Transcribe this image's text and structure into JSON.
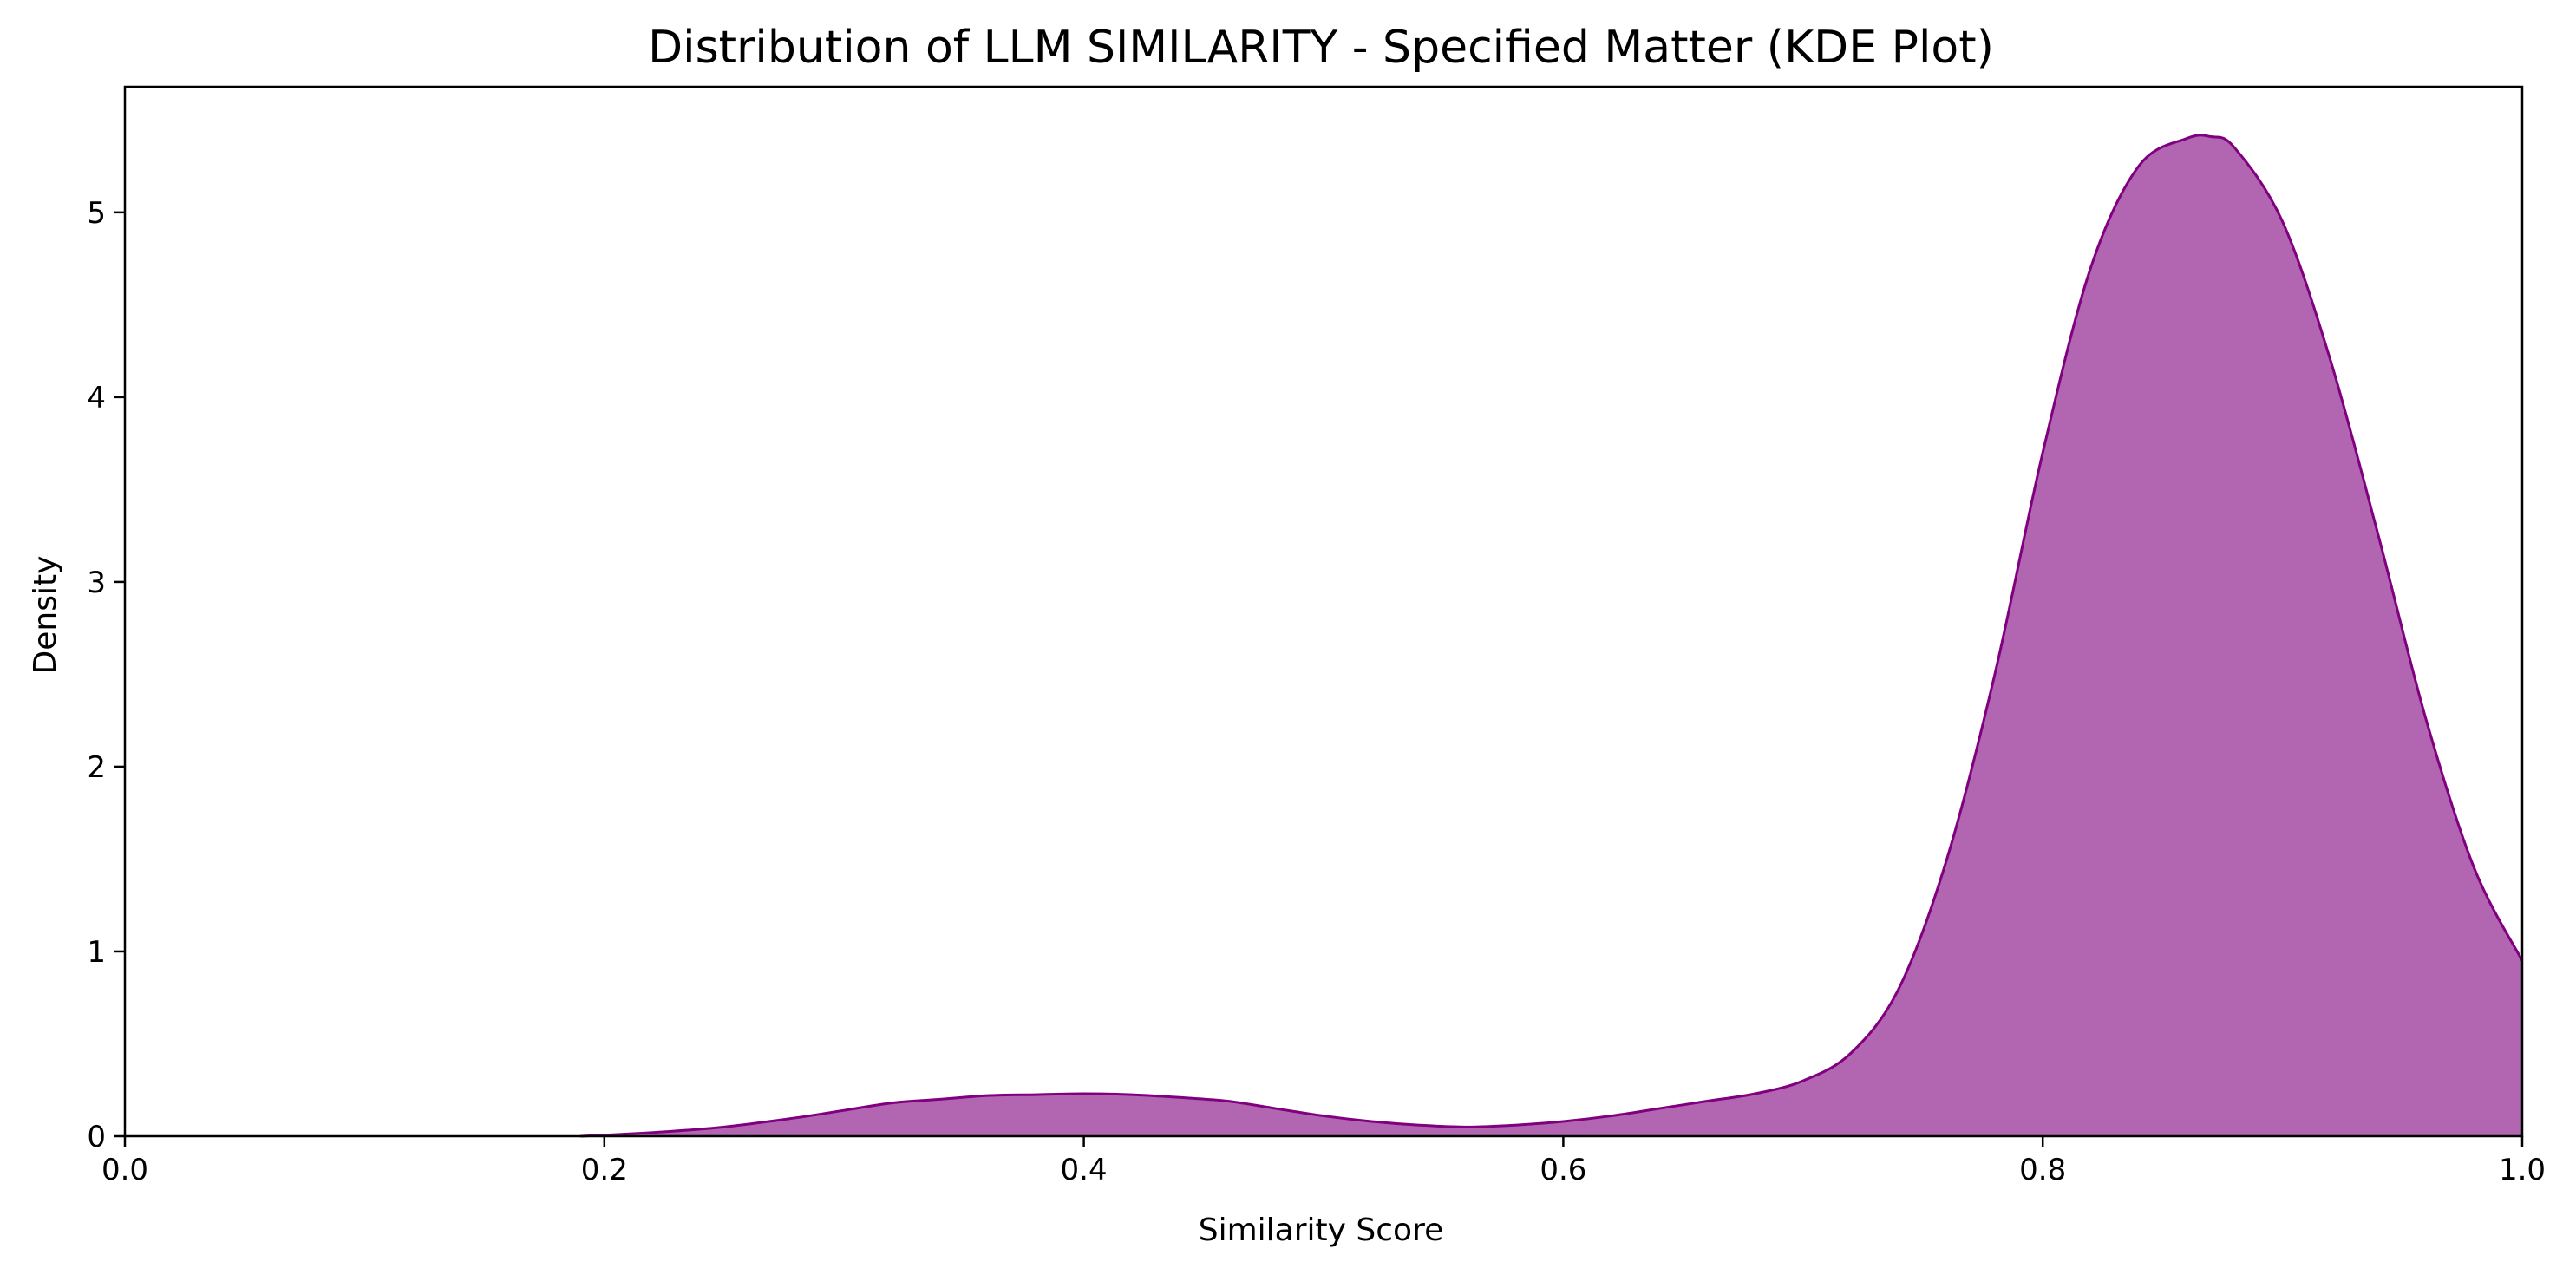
{
  "chart_data": {
    "type": "area",
    "title": "Distribution of LLM SIMILARITY - Specified Matter (KDE Plot)",
    "xlabel": "Similarity Score",
    "ylabel": "Density",
    "xlim": [
      0.0,
      1.0
    ],
    "ylim": [
      0,
      5.68
    ],
    "x_ticks": [
      0.0,
      0.2,
      0.4,
      0.6,
      0.8,
      1.0
    ],
    "x_tick_labels": [
      "0.0",
      "0.2",
      "0.4",
      "0.6",
      "0.8",
      "1.0"
    ],
    "y_ticks": [
      0,
      1,
      2,
      3,
      4,
      5
    ],
    "y_tick_labels": [
      "0",
      "1",
      "2",
      "3",
      "4",
      "5"
    ],
    "grid": false,
    "legend": "none",
    "fill_color": "#b266b2",
    "line_color": "#800080",
    "series": [
      {
        "x": [
          0.19,
          0.22,
          0.25,
          0.28,
          0.3,
          0.32,
          0.34,
          0.36,
          0.38,
          0.4,
          0.42,
          0.44,
          0.46,
          0.48,
          0.5,
          0.52,
          0.54,
          0.56,
          0.58,
          0.6,
          0.62,
          0.64,
          0.66,
          0.68,
          0.7,
          0.72,
          0.74,
          0.76,
          0.78,
          0.8,
          0.82,
          0.84,
          0.86,
          0.87,
          0.88,
          0.9,
          0.92,
          0.94,
          0.96,
          0.98,
          1.0
        ],
        "y": [
          0.0,
          0.02,
          0.05,
          0.1,
          0.14,
          0.18,
          0.2,
          0.22,
          0.225,
          0.23,
          0.225,
          0.21,
          0.19,
          0.15,
          0.11,
          0.08,
          0.06,
          0.05,
          0.06,
          0.08,
          0.11,
          0.15,
          0.19,
          0.23,
          0.3,
          0.45,
          0.8,
          1.5,
          2.5,
          3.7,
          4.7,
          5.25,
          5.4,
          5.41,
          5.35,
          4.95,
          4.2,
          3.25,
          2.25,
          1.45,
          0.95
        ]
      }
    ]
  }
}
